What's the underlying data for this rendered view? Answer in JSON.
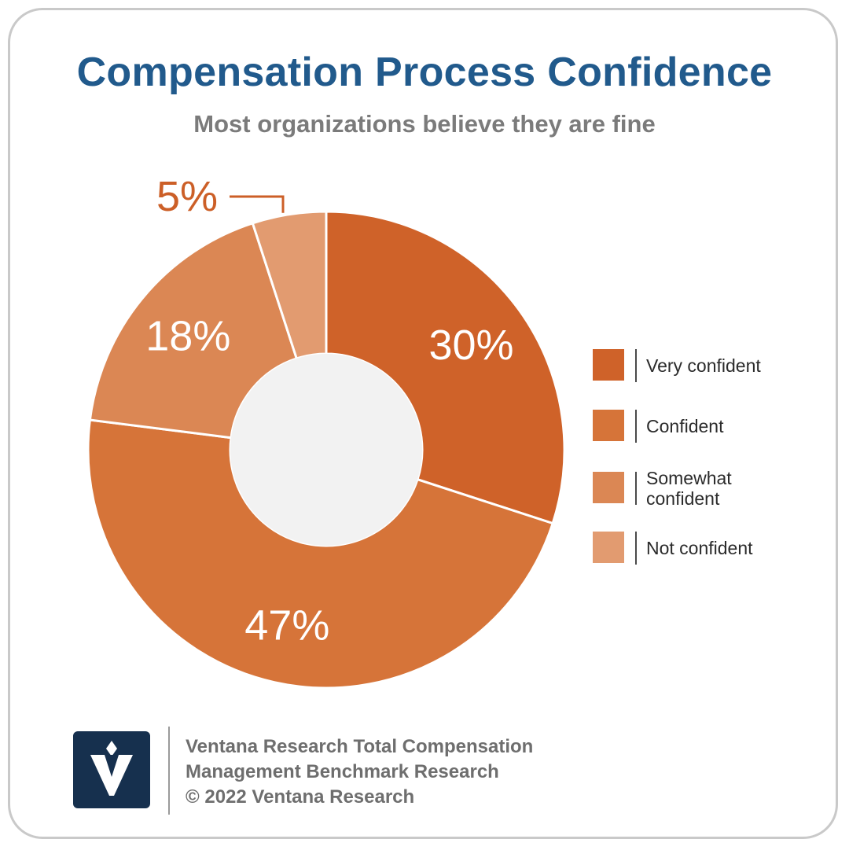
{
  "title": "Compensation Process Confidence",
  "subtitle": "Most organizations believe they are fine",
  "chart_data": {
    "type": "pie",
    "variant": "donut",
    "title": "Compensation Process Confidence",
    "subtitle": "Most organizations believe they are fine",
    "categories": [
      "Very confident",
      "Confident",
      "Somewhat confident",
      "Not confident"
    ],
    "values": [
      30,
      47,
      18,
      5
    ],
    "labels": [
      "30%",
      "47%",
      "18%",
      "5%"
    ],
    "colors": [
      "#cf6229",
      "#d67439",
      "#db8754",
      "#e29b70"
    ],
    "legend_position": "right",
    "start": "top",
    "direction": "clockwise"
  },
  "legend": {
    "items": [
      {
        "label": "Very confident",
        "color": "#cf6229"
      },
      {
        "label": "Confident",
        "color": "#d67439"
      },
      {
        "label": "Somewhat confident",
        "color": "#db8754"
      },
      {
        "label": "Not confident",
        "color": "#e29b70"
      }
    ]
  },
  "colors": {
    "title": "#215a8c",
    "subtitle": "#7b7b7b",
    "hole": "#f2f2f2",
    "outside_label": "#cc5f27",
    "inside_label": "#ffffff",
    "logo_bg": "#16304e"
  },
  "footer": {
    "line1": "Ventana Research Total Compensation",
    "line2": "Management Benchmark Research",
    "line3": "© 2022 Ventana Research"
  },
  "logo": {
    "icon": "ventana-v-logo-icon"
  }
}
